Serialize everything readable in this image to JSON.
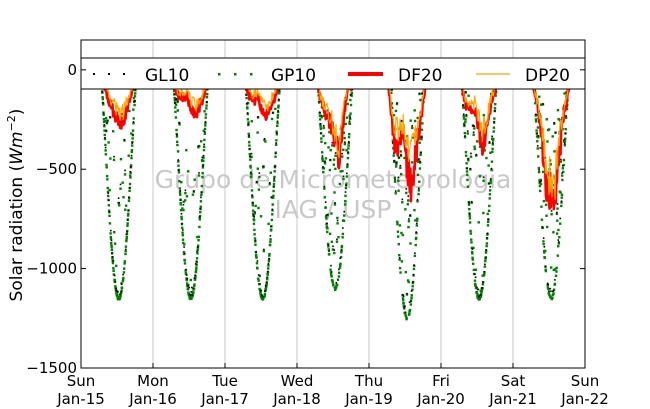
{
  "chart_data": {
    "type": "line",
    "ylabel_main": "Solar radiation (",
    "ylabel_unit": "Wm",
    "ylabel_exp": "−2",
    "ylabel_close": ")",
    "ylim": [
      -1500,
      150
    ],
    "yticks": [
      0,
      -500,
      -1000,
      -1500
    ],
    "ytick_labels": [
      "0",
      "−500",
      "−1000",
      "−1500"
    ],
    "xlim": [
      0,
      7
    ],
    "xticks": [
      {
        "x": 0,
        "day": "Sun",
        "date": "Jan-15"
      },
      {
        "x": 1,
        "day": "Mon",
        "date": "Jan-16"
      },
      {
        "x": 2,
        "day": "Tue",
        "date": "Jan-17"
      },
      {
        "x": 3,
        "day": "Wed",
        "date": "Jan-18"
      },
      {
        "x": 4,
        "day": "Thu",
        "date": "Jan-19"
      },
      {
        "x": 5,
        "day": "Fri",
        "date": "Jan-20"
      },
      {
        "x": 6,
        "day": "Sat",
        "date": "Jan-21"
      },
      {
        "x": 7,
        "day": "Sun",
        "date": "Jan-22"
      }
    ],
    "grid": "vertical",
    "legend_position": "top",
    "watermark": [
      "Grupo de Micrometeorologia",
      "IAG / USP"
    ],
    "series": [
      {
        "name": "GL10",
        "style": "dotted-dense",
        "color": "#000000"
      },
      {
        "name": "GP10",
        "style": "dotted-sparse",
        "color": "#008000"
      },
      {
        "name": "DF20",
        "style": "thick-line",
        "color": "#ff0000"
      },
      {
        "name": "DP20",
        "style": "thin-line",
        "color": "#ffa500"
      }
    ],
    "days": [
      {
        "sunrise": 0.27,
        "sunset": 0.78,
        "gp_peak": -1150,
        "gp_noise": 0.25,
        "df_peak": -270,
        "dp_peak": -220,
        "df_shape": [
          0.3,
          0.55,
          0.8,
          1.0,
          0.6,
          0.3
        ]
      },
      {
        "sunrise": 1.27,
        "sunset": 1.78,
        "gp_peak": -1150,
        "gp_noise": 0.2,
        "df_peak": -250,
        "dp_peak": -200,
        "df_shape": [
          0.45,
          0.7,
          0.5,
          0.9,
          0.8,
          0.35
        ]
      },
      {
        "sunrise": 2.27,
        "sunset": 2.78,
        "gp_peak": -1150,
        "gp_noise": 0.25,
        "df_peak": -240,
        "dp_peak": -190,
        "df_shape": [
          0.4,
          0.8,
          0.6,
          1.0,
          0.75,
          0.3
        ]
      },
      {
        "sunrise": 3.27,
        "sunset": 3.79,
        "gp_peak": -1100,
        "gp_noise": 0.55,
        "df_peak": -440,
        "dp_peak": -380,
        "df_shape": [
          0.3,
          0.55,
          0.6,
          1.0,
          0.3,
          0.5
        ]
      },
      {
        "sunrise": 4.27,
        "sunset": 4.79,
        "gp_peak": -1250,
        "gp_noise": 0.55,
        "df_peak": -580,
        "dp_peak": -450,
        "df_shape": [
          0.3,
          0.9,
          0.6,
          1.0,
          0.7,
          0.35
        ]
      },
      {
        "sunrise": 5.27,
        "sunset": 5.79,
        "gp_peak": -1150,
        "gp_noise": 0.35,
        "df_peak": -380,
        "dp_peak": -320,
        "df_shape": [
          0.3,
          0.65,
          0.5,
          1.0,
          0.6,
          0.4
        ]
      },
      {
        "sunrise": 6.27,
        "sunset": 6.79,
        "gp_peak": -1150,
        "gp_noise": 0.55,
        "df_peak": -650,
        "dp_peak": -560,
        "df_shape": [
          0.3,
          0.4,
          0.9,
          1.0,
          0.5,
          0.25
        ]
      }
    ]
  }
}
